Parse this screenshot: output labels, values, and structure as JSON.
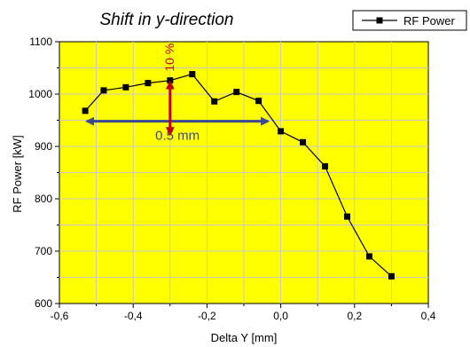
{
  "chart_data": {
    "type": "line",
    "title": "Shift in y-direction",
    "xlabel": "Delta Y [mm]",
    "ylabel": "RF Power [kW]",
    "xlim": [
      -0.6,
      0.4
    ],
    "ylim": [
      600,
      1100
    ],
    "x_ticks": [
      -0.6,
      -0.4,
      -0.2,
      0.0,
      0.2,
      0.4
    ],
    "x_tick_labels": [
      "-0,6",
      "-0,4",
      "-0,2",
      "0,0",
      "0,2",
      "0,4"
    ],
    "y_ticks": [
      600,
      700,
      800,
      900,
      1000,
      1100
    ],
    "y_tick_labels": [
      "600",
      "700",
      "800",
      "900",
      "1000",
      "1100"
    ],
    "grid": true,
    "legend_position": "top-right",
    "series": [
      {
        "name": "RF Power",
        "x": [
          -0.53,
          -0.48,
          -0.42,
          -0.36,
          -0.3,
          -0.24,
          -0.18,
          -0.12,
          -0.06,
          0.0,
          0.06,
          0.12,
          0.18,
          0.24,
          0.3
        ],
        "y": [
          968,
          1007,
          1013,
          1021,
          1026,
          1038,
          986,
          1004,
          987,
          929,
          908,
          862,
          766,
          690,
          652
        ]
      }
    ],
    "annotations": {
      "width_label": "0.5 mm",
      "width_from": -0.53,
      "width_to": -0.03,
      "width_at_y": 948,
      "height_label": "10 %",
      "height_at_x": -0.3,
      "height_from": 920,
      "height_to": 1026
    }
  },
  "colors": {
    "plot_background": "#ffff00",
    "grid": "#c8c8c8",
    "series_line": "#000000",
    "width_arrow": "#3b4a8c",
    "width_label": "#404a78",
    "height_arrow": "#c00000",
    "height_label": "#c00000"
  }
}
